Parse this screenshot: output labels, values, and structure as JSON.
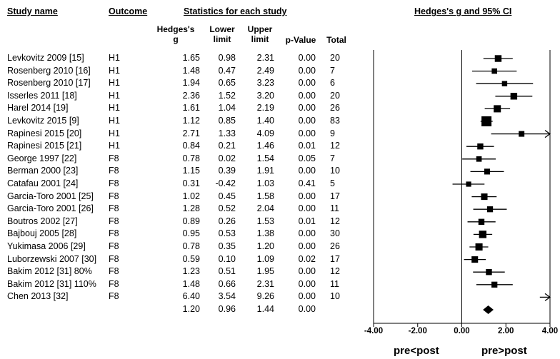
{
  "headers": {
    "study_name": "Study name",
    "outcome": "Outcome",
    "stats": "Statistics for each study",
    "plot": "Hedges's g and 95% CI",
    "hedges_l1": "Hedges's",
    "hedges_l2": "g",
    "lower_l1": "Lower",
    "lower_l2": "limit",
    "upper_l1": "Upper",
    "upper_l2": "limit",
    "pvalue": "p-Value",
    "total": "Total"
  },
  "rows": [
    {
      "study": "Levkovitz 2009 [15]",
      "outcome": "H1",
      "g": "1.65",
      "lower": "0.98",
      "upper": "2.31",
      "p": "0.00",
      "total": "20"
    },
    {
      "study": "Rosenberg 2010 [16]",
      "outcome": "H1",
      "g": "1.48",
      "lower": "0.47",
      "upper": "2.49",
      "p": "0.00",
      "total": "7"
    },
    {
      "study": "Rosenberg 2010 [17]",
      "outcome": "H1",
      "g": "1.94",
      "lower": "0.65",
      "upper": "3.23",
      "p": "0.00",
      "total": "6"
    },
    {
      "study": "Isserles 2011 [18]",
      "outcome": "H1",
      "g": "2.36",
      "lower": "1.52",
      "upper": "3.20",
      "p": "0.00",
      "total": "20"
    },
    {
      "study": "Harel 2014 [19]",
      "outcome": "H1",
      "g": "1.61",
      "lower": "1.04",
      "upper": "2.19",
      "p": "0.00",
      "total": "26"
    },
    {
      "study": "Levkovitz 2015 [9]",
      "outcome": "H1",
      "g": "1.12",
      "lower": "0.85",
      "upper": "1.40",
      "p": "0.00",
      "total": "83"
    },
    {
      "study": "Rapinesi 2015 [20]",
      "outcome": "H1",
      "g": "2.71",
      "lower": "1.33",
      "upper": "4.09",
      "p": "0.00",
      "total": "9"
    },
    {
      "study": "Rapinesi 2015 [21]",
      "outcome": "H1",
      "g": "0.84",
      "lower": "0.21",
      "upper": "1.46",
      "p": "0.01",
      "total": "12"
    },
    {
      "study": "George 1997 [22]",
      "outcome": "F8",
      "g": "0.78",
      "lower": "0.02",
      "upper": "1.54",
      "p": "0.05",
      "total": "7"
    },
    {
      "study": "Berman 2000 [23]",
      "outcome": "F8",
      "g": "1.15",
      "lower": "0.39",
      "upper": "1.91",
      "p": "0.00",
      "total": "10"
    },
    {
      "study": "Catafau 2001 [24]",
      "outcome": "F8",
      "g": "0.31",
      "lower": "-0.42",
      "upper": "1.03",
      "p": "0.41",
      "total": "5"
    },
    {
      "study": "Garcia-Toro 2001 [25]",
      "outcome": "F8",
      "g": "1.02",
      "lower": "0.45",
      "upper": "1.58",
      "p": "0.00",
      "total": "17"
    },
    {
      "study": "Garcia-Toro 2001 [26]",
      "outcome": "F8",
      "g": "1.28",
      "lower": "0.52",
      "upper": "2.04",
      "p": "0.00",
      "total": "11"
    },
    {
      "study": "Boutros 2002 [27]",
      "outcome": "F8",
      "g": "0.89",
      "lower": "0.26",
      "upper": "1.53",
      "p": "0.01",
      "total": "12"
    },
    {
      "study": "Bajbouj 2005 [28]",
      "outcome": "F8",
      "g": "0.95",
      "lower": "0.53",
      "upper": "1.38",
      "p": "0.00",
      "total": "30"
    },
    {
      "study": "Yukimasa 2006 [29]",
      "outcome": "F8",
      "g": "0.78",
      "lower": "0.35",
      "upper": "1.20",
      "p": "0.00",
      "total": "26"
    },
    {
      "study": "Luborzewski 2007 [30]",
      "outcome": "F8",
      "g": "0.59",
      "lower": "0.10",
      "upper": "1.09",
      "p": "0.02",
      "total": "17"
    },
    {
      "study": "Bakim 2012 [31] 80%",
      "outcome": "F8",
      "g": "1.23",
      "lower": "0.51",
      "upper": "1.95",
      "p": "0.00",
      "total": "12"
    },
    {
      "study": "Bakim 2012 [31] 110%",
      "outcome": "F8",
      "g": "1.48",
      "lower": "0.66",
      "upper": "2.31",
      "p": "0.00",
      "total": "11"
    },
    {
      "study": "Chen 2013 [32]",
      "outcome": "F8",
      "g": "6.40",
      "lower": "3.54",
      "upper": "9.26",
      "p": "0.00",
      "total": "10"
    }
  ],
  "summary": {
    "g": "1.20",
    "lower": "0.96",
    "upper": "1.44",
    "p": "0.00"
  },
  "axis": {
    "ticks": [
      "-4.00",
      "-2.00",
      "0.00",
      "2.00",
      "4.00"
    ],
    "left_label": "pre<post",
    "right_label": "pre>post"
  },
  "chart_data": {
    "type": "forest",
    "xlim": [
      -4,
      4
    ],
    "xticks": [
      -4,
      -2,
      0,
      2,
      4
    ],
    "studies": [
      {
        "g": 1.65,
        "lower": 0.98,
        "upper": 2.31,
        "total": 20
      },
      {
        "g": 1.48,
        "lower": 0.47,
        "upper": 2.49,
        "total": 7
      },
      {
        "g": 1.94,
        "lower": 0.65,
        "upper": 3.23,
        "total": 6
      },
      {
        "g": 2.36,
        "lower": 1.52,
        "upper": 3.2,
        "total": 20
      },
      {
        "g": 1.61,
        "lower": 1.04,
        "upper": 2.19,
        "total": 26
      },
      {
        "g": 1.12,
        "lower": 0.85,
        "upper": 1.4,
        "total": 83
      },
      {
        "g": 2.71,
        "lower": 1.33,
        "upper": 4.09,
        "total": 9
      },
      {
        "g": 0.84,
        "lower": 0.21,
        "upper": 1.46,
        "total": 12
      },
      {
        "g": 0.78,
        "lower": 0.02,
        "upper": 1.54,
        "total": 7
      },
      {
        "g": 1.15,
        "lower": 0.39,
        "upper": 1.91,
        "total": 10
      },
      {
        "g": 0.31,
        "lower": -0.42,
        "upper": 1.03,
        "total": 5
      },
      {
        "g": 1.02,
        "lower": 0.45,
        "upper": 1.58,
        "total": 17
      },
      {
        "g": 1.28,
        "lower": 0.52,
        "upper": 2.04,
        "total": 11
      },
      {
        "g": 0.89,
        "lower": 0.26,
        "upper": 1.53,
        "total": 12
      },
      {
        "g": 0.95,
        "lower": 0.53,
        "upper": 1.38,
        "total": 30
      },
      {
        "g": 0.78,
        "lower": 0.35,
        "upper": 1.2,
        "total": 26
      },
      {
        "g": 0.59,
        "lower": 0.1,
        "upper": 1.09,
        "total": 17
      },
      {
        "g": 1.23,
        "lower": 0.51,
        "upper": 1.95,
        "total": 12
      },
      {
        "g": 1.48,
        "lower": 0.66,
        "upper": 2.31,
        "total": 11
      },
      {
        "g": 6.4,
        "lower": 3.54,
        "upper": 9.26,
        "total": 10
      }
    ],
    "summary": {
      "g": 1.2,
      "lower": 0.96,
      "upper": 1.44
    }
  }
}
